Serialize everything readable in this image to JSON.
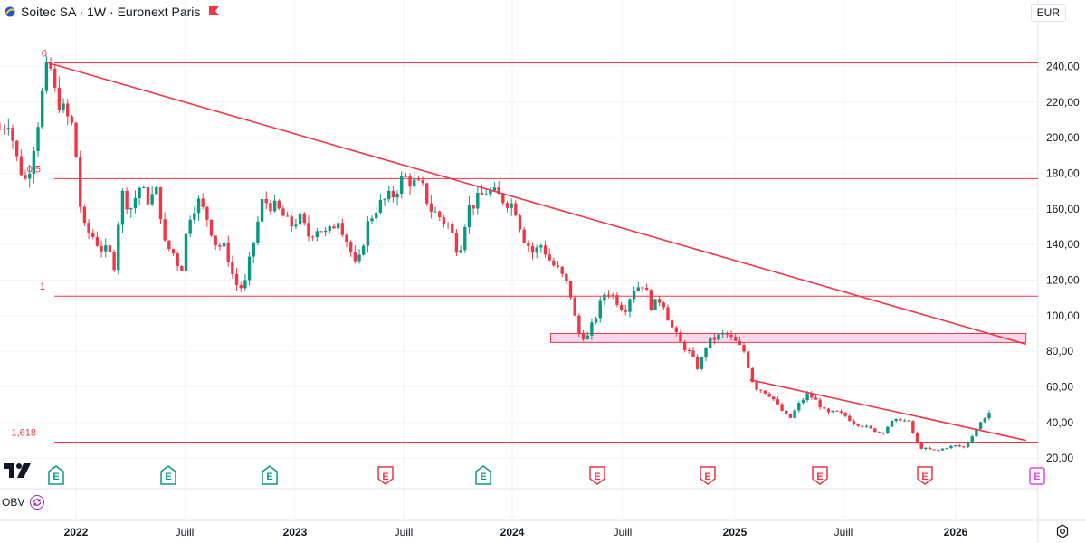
{
  "header": {
    "title": "Soitec SA · 1W · Euronext Paris"
  },
  "currency": "EUR",
  "indicator": {
    "name": "OBV"
  },
  "time_axis": [
    {
      "label": "2022",
      "year": true
    },
    {
      "label": "Juill",
      "year": false
    },
    {
      "label": "2023",
      "year": true
    },
    {
      "label": "Juill",
      "year": false
    },
    {
      "label": "2024",
      "year": true
    },
    {
      "label": "Juill",
      "year": false
    },
    {
      "label": "2025",
      "year": true
    },
    {
      "label": "Juill",
      "year": false
    },
    {
      "label": "2026",
      "year": true
    }
  ],
  "events": [
    {
      "label": "E",
      "kind": "past-positive"
    },
    {
      "label": "E",
      "kind": "past-positive"
    },
    {
      "label": "E",
      "kind": "past-positive"
    },
    {
      "label": "E",
      "kind": "past-negative"
    },
    {
      "label": "E",
      "kind": "past-positive"
    },
    {
      "label": "E",
      "kind": "past-negative"
    },
    {
      "label": "E",
      "kind": "past-negative"
    },
    {
      "label": "E",
      "kind": "past-negative"
    },
    {
      "label": "E",
      "kind": "past-negative"
    },
    {
      "label": "E",
      "kind": "upcoming"
    }
  ],
  "colors": {
    "up": "#089981",
    "down": "#f23645",
    "line": "#f23645",
    "zone_fill": "#f8d8ee",
    "zone_border": "#f23645",
    "upcoming": "#e040fb"
  },
  "chart_data": {
    "type": "candlestick",
    "title": "Soitec SA · 1W · Euronext Paris",
    "ylim": [
      13,
      258
    ],
    "y_ticks": [
      "240,00",
      "220,00",
      "200,00",
      "180,00",
      "160,00",
      "140,00",
      "120,00",
      "100,00",
      "80,00",
      "60,00",
      "40,00",
      "20,00"
    ],
    "y_tick_values": [
      240,
      220,
      200,
      180,
      160,
      140,
      120,
      100,
      80,
      60,
      40,
      20
    ],
    "x_start": "2021-09-01",
    "x_end": "2026-05-17",
    "fib_levels": [
      {
        "label": "0",
        "price": 242
      },
      {
        "label": "0,5",
        "price": 177
      },
      {
        "label": "1",
        "price": 111
      },
      {
        "label": "1,618",
        "price": 29
      }
    ],
    "trendlines": [
      {
        "from": [
          "2021-11-20",
          242
        ],
        "to": [
          "2026-04-27",
          84
        ]
      },
      {
        "from": [
          "2025-01-25",
          64
        ],
        "to": [
          "2026-04-27",
          30
        ]
      }
    ],
    "zone": {
      "from": "2024-03-01",
      "to": "2026-04-27",
      "high": 90,
      "low": 85
    },
    "price_path": [
      [
        "2021-09-01",
        205
      ],
      [
        "2021-09-15",
        210
      ],
      [
        "2021-10-01",
        185
      ],
      [
        "2021-10-15",
        175
      ],
      [
        "2021-11-01",
        205
      ],
      [
        "2021-11-15",
        235
      ],
      [
        "2021-11-22",
        242
      ],
      [
        "2021-12-01",
        225
      ],
      [
        "2021-12-15",
        215
      ],
      [
        "2022-01-01",
        205
      ],
      [
        "2022-01-15",
        150
      ],
      [
        "2022-02-01",
        145
      ],
      [
        "2022-02-15",
        138
      ],
      [
        "2022-03-01",
        135
      ],
      [
        "2022-03-10",
        128
      ],
      [
        "2022-03-20",
        170
      ],
      [
        "2022-04-05",
        160
      ],
      [
        "2022-04-20",
        172
      ],
      [
        "2022-05-05",
        165
      ],
      [
        "2022-05-20",
        170
      ],
      [
        "2022-06-01",
        140
      ],
      [
        "2022-06-15",
        135
      ],
      [
        "2022-06-28",
        125
      ],
      [
        "2022-07-10",
        155
      ],
      [
        "2022-07-25",
        165
      ],
      [
        "2022-08-10",
        155
      ],
      [
        "2022-08-25",
        140
      ],
      [
        "2022-09-10",
        138
      ],
      [
        "2022-09-25",
        118
      ],
      [
        "2022-10-10",
        115
      ],
      [
        "2022-10-25",
        140
      ],
      [
        "2022-11-10",
        165
      ],
      [
        "2022-11-25",
        162
      ],
      [
        "2022-12-10",
        158
      ],
      [
        "2022-12-25",
        150
      ],
      [
        "2023-01-10",
        155
      ],
      [
        "2023-01-25",
        145
      ],
      [
        "2023-02-10",
        150
      ],
      [
        "2023-02-25",
        145
      ],
      [
        "2023-03-15",
        155
      ],
      [
        "2023-04-01",
        140
      ],
      [
        "2023-04-15",
        125
      ],
      [
        "2023-05-01",
        150
      ],
      [
        "2023-05-15",
        160
      ],
      [
        "2023-06-01",
        165
      ],
      [
        "2023-06-15",
        168
      ],
      [
        "2023-07-01",
        178
      ],
      [
        "2023-07-15",
        175
      ],
      [
        "2023-08-01",
        172
      ],
      [
        "2023-08-15",
        160
      ],
      [
        "2023-09-01",
        155
      ],
      [
        "2023-09-15",
        150
      ],
      [
        "2023-10-01",
        135
      ],
      [
        "2023-10-15",
        160
      ],
      [
        "2023-11-01",
        165
      ],
      [
        "2023-11-15",
        170
      ],
      [
        "2023-12-01",
        168
      ],
      [
        "2023-12-15",
        165
      ],
      [
        "2024-01-01",
        162
      ],
      [
        "2024-01-15",
        145
      ],
      [
        "2024-02-01",
        135
      ],
      [
        "2024-02-15",
        140
      ],
      [
        "2024-03-01",
        130
      ],
      [
        "2024-03-15",
        125
      ],
      [
        "2024-04-01",
        115
      ],
      [
        "2024-04-15",
        90
      ],
      [
        "2024-05-01",
        88
      ],
      [
        "2024-05-15",
        100
      ],
      [
        "2024-06-01",
        115
      ],
      [
        "2024-06-15",
        110
      ],
      [
        "2024-07-01",
        103
      ],
      [
        "2024-07-15",
        115
      ],
      [
        "2024-08-01",
        118
      ],
      [
        "2024-08-15",
        105
      ],
      [
        "2024-09-01",
        110
      ],
      [
        "2024-09-15",
        95
      ],
      [
        "2024-10-01",
        85
      ],
      [
        "2024-10-15",
        80
      ],
      [
        "2024-11-01",
        70
      ],
      [
        "2024-11-15",
        85
      ],
      [
        "2024-12-01",
        88
      ],
      [
        "2024-12-15",
        90
      ],
      [
        "2025-01-01",
        85
      ],
      [
        "2025-01-15",
        80
      ],
      [
        "2025-02-01",
        60
      ],
      [
        "2025-02-15",
        58
      ],
      [
        "2025-03-01",
        55
      ],
      [
        "2025-03-15",
        48
      ],
      [
        "2025-04-01",
        42
      ],
      [
        "2025-04-15",
        50
      ],
      [
        "2025-05-01",
        56
      ],
      [
        "2025-05-15",
        52
      ],
      [
        "2025-06-01",
        45
      ],
      [
        "2025-06-15",
        46
      ],
      [
        "2025-07-01",
        44
      ],
      [
        "2025-07-15",
        40
      ],
      [
        "2025-08-01",
        38
      ],
      [
        "2025-08-15",
        36
      ],
      [
        "2025-09-01",
        34
      ],
      [
        "2025-09-15",
        40
      ],
      [
        "2025-10-01",
        42
      ],
      [
        "2025-10-15",
        40
      ],
      [
        "2025-11-01",
        26
      ],
      [
        "2025-11-15",
        25
      ],
      [
        "2025-12-01",
        24
      ],
      [
        "2025-12-15",
        26
      ],
      [
        "2026-01-01",
        27
      ],
      [
        "2026-01-15",
        26
      ],
      [
        "2026-02-01",
        35
      ],
      [
        "2026-02-15",
        42
      ],
      [
        "2026-03-01",
        47
      ]
    ]
  }
}
